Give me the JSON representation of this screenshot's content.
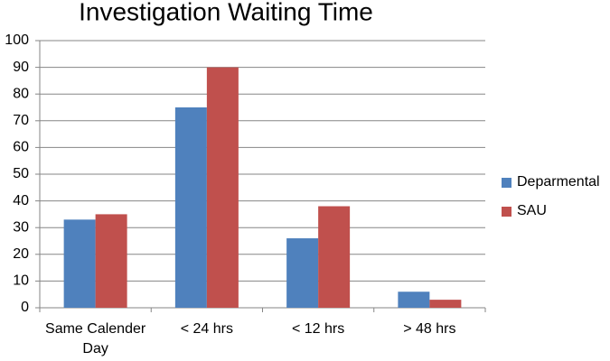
{
  "chart_data": {
    "type": "bar",
    "title": "Investigation Waiting Time",
    "categories": [
      "Same Calender Day",
      "< 24 hrs",
      "< 12 hrs",
      "> 48 hrs"
    ],
    "series": [
      {
        "name": "Deparmental",
        "color": "#4f81bd",
        "values": [
          33,
          75,
          26,
          6
        ]
      },
      {
        "name": "SAU",
        "color": "#c0504d",
        "values": [
          35,
          90,
          38,
          3
        ]
      }
    ],
    "ylim": [
      0,
      100
    ],
    "yticks": [
      0,
      10,
      20,
      30,
      40,
      50,
      60,
      70,
      80,
      90,
      100
    ],
    "grid": true,
    "legend": "right"
  }
}
